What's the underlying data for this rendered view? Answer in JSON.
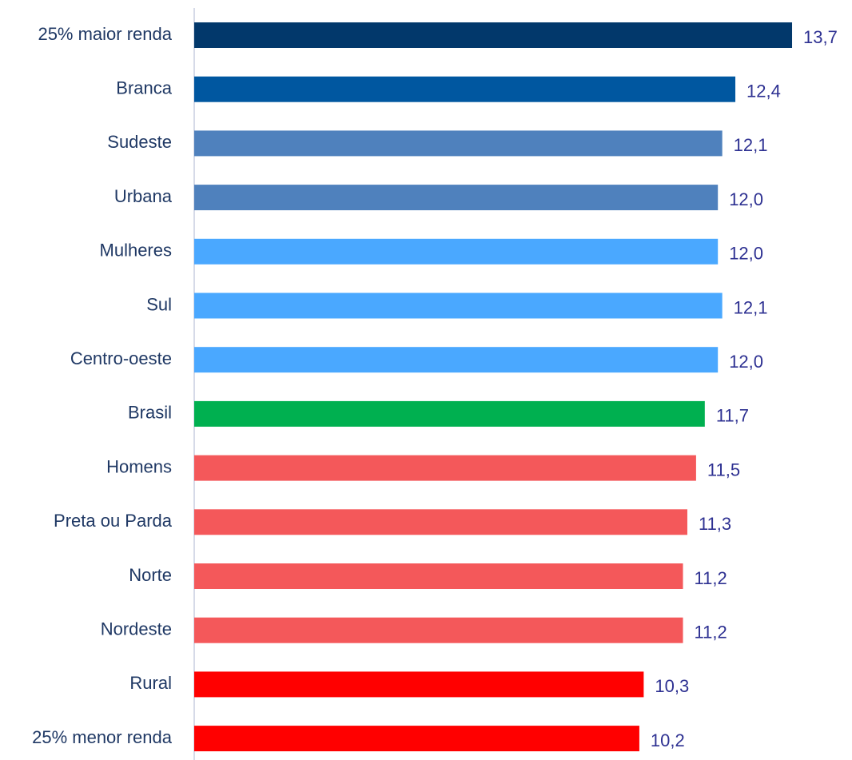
{
  "chart_data": {
    "type": "bar",
    "orientation": "horizontal",
    "categories": [
      "25% maior renda",
      "Branca",
      "Sudeste",
      "Urbana",
      "Mulheres",
      "Sul",
      "Centro-oeste",
      "Brasil",
      "Homens",
      "Preta ou Parda",
      "Norte",
      "Nordeste",
      "Rural",
      "25% menor renda"
    ],
    "values": [
      13.7,
      12.4,
      12.1,
      12.0,
      12.0,
      12.1,
      12.0,
      11.7,
      11.5,
      11.3,
      11.2,
      11.2,
      10.3,
      10.2
    ],
    "value_labels": [
      "13,7",
      "12,4",
      "12,1",
      "12,0",
      "12,0",
      "12,1",
      "12,0",
      "11,7",
      "11,5",
      "11,3",
      "11,2",
      "11,2",
      "10,3",
      "10,2"
    ],
    "colors": [
      "#02386b",
      "#0057a0",
      "#4f81bd",
      "#4f81bd",
      "#4aa8ff",
      "#4aa8ff",
      "#4aa8ff",
      "#00b050",
      "#f4585a",
      "#f4585a",
      "#f4585a",
      "#f4585a",
      "#ff0000",
      "#ff0000"
    ],
    "xlim": [
      0,
      15
    ]
  }
}
